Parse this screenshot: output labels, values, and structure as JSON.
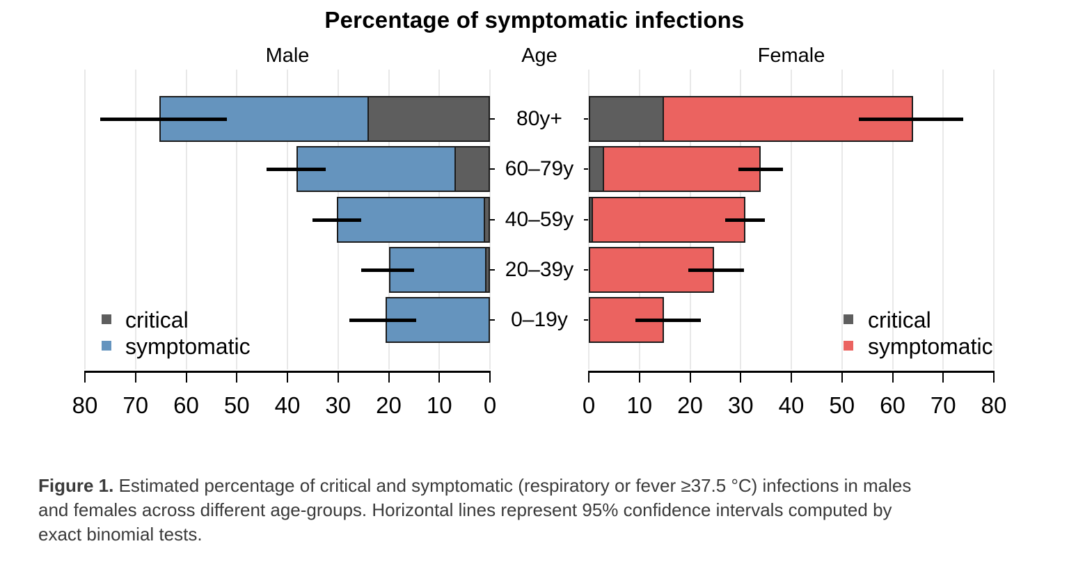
{
  "figure": {
    "title": "Percentage of symptomatic infections",
    "column_headers": {
      "male": "Male",
      "age": "Age",
      "female": "Female"
    }
  },
  "legend": {
    "critical": "critical",
    "symptomatic": "symptomatic"
  },
  "colors": {
    "critical": "#5E5E5E",
    "male_symptomatic": "#6594BE",
    "female_symptomatic": "#EB6360",
    "bar_outline": "#1B1B1B",
    "ci_line": "#000000",
    "axis": "#000000",
    "gridline": "#E8E8E8",
    "caption_text": "#3A3A3A"
  },
  "chart_data": {
    "type": "bar",
    "variant": "horizontal stacked population-pyramid",
    "title": "Percentage of symptomatic infections",
    "unit": "percent",
    "categories": [
      "80y+",
      "60–79y",
      "40–59y",
      "20–39y",
      "0–19y"
    ],
    "xlim": [
      0,
      80
    ],
    "x_ticks": [
      0,
      10,
      20,
      30,
      40,
      50,
      60,
      70,
      80
    ],
    "grid": true,
    "note": "total bar length = symptomatic %; dark inner segment at axis = critical %; black horizontal lines = 95% CI of symptomatic %",
    "panels": [
      {
        "name": "Male",
        "side": "left",
        "series": [
          {
            "name": "symptomatic",
            "values": [
              65.3,
              38.2,
              30.2,
              20.0,
              20.6
            ]
          },
          {
            "name": "critical",
            "values": [
              23.9,
              6.7,
              0.9,
              0.7,
              0
            ]
          }
        ],
        "ci95_low": [
          52.0,
          32.5,
          25.4,
          15.0,
          14.5
        ],
        "ci95_high": [
          77.0,
          44.1,
          35.0,
          25.4,
          27.7
        ]
      },
      {
        "name": "Female",
        "side": "right",
        "series": [
          {
            "name": "symptomatic",
            "values": [
              64.1,
              33.9,
              30.9,
              24.8,
              14.9
            ]
          },
          {
            "name": "critical",
            "values": [
              14.6,
              2.7,
              0.5,
              0,
              0
            ]
          }
        ],
        "ci95_low": [
          53.4,
          29.6,
          26.9,
          19.6,
          9.2
        ],
        "ci95_high": [
          74.0,
          38.4,
          34.8,
          30.6,
          22.1
        ]
      }
    ],
    "legend_entries": [
      "critical",
      "symptomatic"
    ]
  },
  "caption": {
    "bold_label": "Figure 1.",
    "line1_rest": " Estimated percentage of critical and symptomatic (respiratory or fever ≥37.5 °C) infections in males",
    "line2": "and females across different age-groups. Horizontal lines represent 95% confidence intervals computed by",
    "line3": "exact binomial tests."
  }
}
